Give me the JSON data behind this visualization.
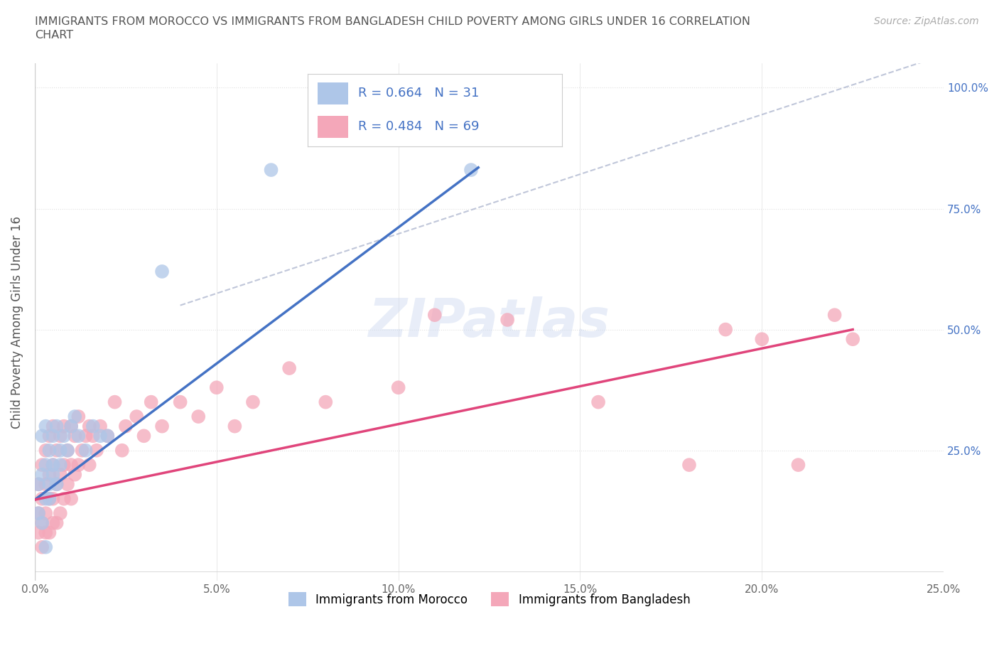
{
  "title_line1": "IMMIGRANTS FROM MOROCCO VS IMMIGRANTS FROM BANGLADESH CHILD POVERTY AMONG GIRLS UNDER 16 CORRELATION",
  "title_line2": "CHART",
  "source_text": "Source: ZipAtlas.com",
  "ylabel": "Child Poverty Among Girls Under 16",
  "xlim": [
    0.0,
    0.25
  ],
  "ylim": [
    -0.02,
    1.05
  ],
  "xticks": [
    0.0,
    0.05,
    0.1,
    0.15,
    0.2,
    0.25
  ],
  "yticks": [
    0.0,
    0.25,
    0.5,
    0.75,
    1.0
  ],
  "xtick_labels": [
    "0.0%",
    "5.0%",
    "10.0%",
    "15.0%",
    "20.0%",
    "25.0%"
  ],
  "ytick_labels": [
    "",
    "25.0%",
    "50.0%",
    "75.0%",
    "100.0%"
  ],
  "morocco_color": "#aec6e8",
  "morocco_line_color": "#4472c4",
  "bangladesh_color": "#f4a7b9",
  "bangladesh_line_color": "#e0457b",
  "morocco_R": 0.664,
  "morocco_N": 31,
  "bangladesh_R": 0.484,
  "bangladesh_N": 69,
  "watermark": "ZIPatlas",
  "background_color": "#ffffff",
  "grid_color": "#e0e0e0",
  "morocco_label": "Immigrants from Morocco",
  "bangladesh_label": "Immigrants from Bangladesh",
  "morocco_scatter_x": [
    0.001,
    0.001,
    0.002,
    0.002,
    0.002,
    0.003,
    0.003,
    0.003,
    0.004,
    0.004,
    0.004,
    0.005,
    0.005,
    0.005,
    0.006,
    0.006,
    0.007,
    0.007,
    0.008,
    0.009,
    0.01,
    0.011,
    0.012,
    0.014,
    0.016,
    0.018,
    0.02,
    0.035,
    0.065,
    0.12,
    0.003
  ],
  "morocco_scatter_y": [
    0.12,
    0.18,
    0.1,
    0.2,
    0.28,
    0.15,
    0.22,
    0.3,
    0.18,
    0.25,
    0.15,
    0.2,
    0.28,
    0.22,
    0.18,
    0.3,
    0.25,
    0.22,
    0.28,
    0.25,
    0.3,
    0.32,
    0.28,
    0.25,
    0.3,
    0.28,
    0.28,
    0.62,
    0.83,
    0.83,
    0.05
  ],
  "bangladesh_scatter_x": [
    0.001,
    0.001,
    0.001,
    0.002,
    0.002,
    0.002,
    0.002,
    0.003,
    0.003,
    0.003,
    0.003,
    0.004,
    0.004,
    0.004,
    0.004,
    0.005,
    0.005,
    0.005,
    0.005,
    0.006,
    0.006,
    0.006,
    0.007,
    0.007,
    0.007,
    0.008,
    0.008,
    0.008,
    0.009,
    0.009,
    0.01,
    0.01,
    0.01,
    0.011,
    0.011,
    0.012,
    0.012,
    0.013,
    0.014,
    0.015,
    0.015,
    0.016,
    0.017,
    0.018,
    0.02,
    0.022,
    0.024,
    0.025,
    0.028,
    0.03,
    0.032,
    0.035,
    0.04,
    0.045,
    0.05,
    0.055,
    0.06,
    0.07,
    0.08,
    0.1,
    0.11,
    0.13,
    0.155,
    0.18,
    0.19,
    0.2,
    0.21,
    0.22,
    0.225
  ],
  "bangladesh_scatter_y": [
    0.08,
    0.12,
    0.18,
    0.05,
    0.1,
    0.15,
    0.22,
    0.08,
    0.12,
    0.18,
    0.25,
    0.08,
    0.15,
    0.2,
    0.28,
    0.1,
    0.15,
    0.22,
    0.3,
    0.1,
    0.18,
    0.25,
    0.12,
    0.2,
    0.28,
    0.15,
    0.22,
    0.3,
    0.18,
    0.25,
    0.15,
    0.22,
    0.3,
    0.2,
    0.28,
    0.22,
    0.32,
    0.25,
    0.28,
    0.22,
    0.3,
    0.28,
    0.25,
    0.3,
    0.28,
    0.35,
    0.25,
    0.3,
    0.32,
    0.28,
    0.35,
    0.3,
    0.35,
    0.32,
    0.38,
    0.3,
    0.35,
    0.42,
    0.35,
    0.38,
    0.53,
    0.52,
    0.35,
    0.22,
    0.5,
    0.48,
    0.22,
    0.53,
    0.48
  ],
  "ref_line_x": [
    0.04,
    0.255
  ],
  "ref_line_y": [
    0.55,
    1.08
  ],
  "morocco_trend_x": [
    0.0,
    0.122
  ],
  "morocco_trend_y": [
    0.148,
    0.835
  ],
  "bangladesh_trend_x": [
    0.0,
    0.225
  ],
  "bangladesh_trend_y": [
    0.148,
    0.5
  ]
}
